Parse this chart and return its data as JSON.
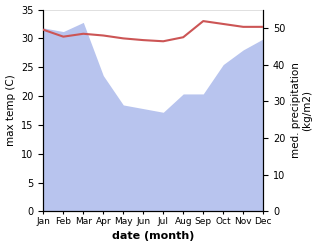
{
  "months": [
    1,
    2,
    3,
    4,
    5,
    6,
    7,
    8,
    9,
    10,
    11,
    12
  ],
  "month_labels": [
    "Jan",
    "Feb",
    "Mar",
    "Apr",
    "May",
    "Jun",
    "Jul",
    "Aug",
    "Sep",
    "Oct",
    "Nov",
    "Dec"
  ],
  "temperature": [
    31.5,
    30.3,
    30.8,
    30.5,
    30.0,
    29.7,
    29.5,
    30.2,
    33.0,
    32.5,
    32.0,
    32.0
  ],
  "precipitation": [
    50.0,
    49.0,
    51.5,
    37.0,
    29.0,
    28.0,
    27.0,
    32.0,
    32.0,
    40.0,
    44.0,
    47.0
  ],
  "temp_color": "#cc5555",
  "precip_color": "#b8c4ee",
  "left_ylim": [
    0,
    35
  ],
  "left_yticks": [
    0,
    5,
    10,
    15,
    20,
    25,
    30,
    35
  ],
  "right_ylim": [
    0,
    55
  ],
  "right_yticks": [
    0,
    10,
    20,
    30,
    40,
    50
  ],
  "xlabel": "date (month)",
  "ylabel_left": "max temp (C)",
  "ylabel_right": "med. precipitation\n(kg/m2)",
  "figsize": [
    3.18,
    2.47
  ],
  "dpi": 100
}
